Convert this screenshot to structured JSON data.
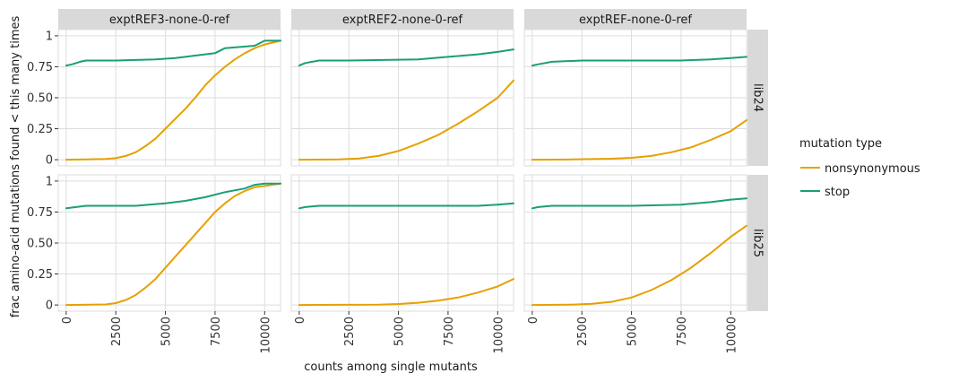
{
  "chart_data": {
    "type": "line",
    "xlabel": "counts among single mutants",
    "ylabel": "frac amino-acid mutations found < this many times",
    "xlim": [
      -400,
      10800
    ],
    "ylim": [
      -0.05,
      1.05
    ],
    "x_ticks": [
      0,
      2500,
      5000,
      7500,
      10000
    ],
    "x_tick_labels": [
      "0",
      "2500",
      "5000",
      "7500",
      "10000"
    ],
    "y_ticks": [
      0,
      0.25,
      0.5,
      0.75,
      1
    ],
    "y_tick_labels": [
      "0",
      "0.25",
      "0.50",
      "0.75",
      "1"
    ],
    "columns": [
      "exptREF3-none-0-ref",
      "exptREF2-none-0-ref",
      "exptREF-none-0-ref"
    ],
    "rows": [
      "lib24",
      "lib25"
    ],
    "grid": true,
    "legend": {
      "title": "mutation type",
      "position": "right",
      "entries": [
        {
          "label": "nonsynonymous",
          "color": "#E6A000"
        },
        {
          "label": "stop",
          "color": "#1B9E77"
        }
      ]
    },
    "colors": {
      "nonsynonymous": "#E6A000",
      "stop": "#1B9E77",
      "strip": "#D9D9D9",
      "grid": "#DDDDDD"
    },
    "panels": [
      {
        "col": 0,
        "row": 0,
        "series": [
          {
            "type": "nonsynonymous",
            "x": [
              0,
              1000,
              2000,
              2500,
              3000,
              3500,
              4000,
              4500,
              5000,
              5500,
              6000,
              6500,
              7000,
              7500,
              8000,
              8500,
              9000,
              9500,
              10000,
              10800
            ],
            "y": [
              0,
              0.002,
              0.006,
              0.012,
              0.03,
              0.06,
              0.11,
              0.17,
              0.25,
              0.33,
              0.41,
              0.5,
              0.6,
              0.68,
              0.75,
              0.81,
              0.86,
              0.9,
              0.93,
              0.96
            ]
          },
          {
            "type": "stop",
            "x": [
              0,
              300,
              700,
              1000,
              2500,
              4500,
              5500,
              6500,
              7500,
              8000,
              9500,
              10000,
              10800
            ],
            "y": [
              0.76,
              0.77,
              0.79,
              0.8,
              0.8,
              0.81,
              0.82,
              0.84,
              0.86,
              0.9,
              0.92,
              0.96,
              0.96
            ]
          }
        ]
      },
      {
        "col": 1,
        "row": 0,
        "series": [
          {
            "type": "nonsynonymous",
            "x": [
              0,
              2000,
              3000,
              4000,
              5000,
              6000,
              7000,
              8000,
              9000,
              10000,
              10800
            ],
            "y": [
              0,
              0.003,
              0.01,
              0.03,
              0.07,
              0.13,
              0.2,
              0.29,
              0.39,
              0.5,
              0.64
            ]
          },
          {
            "type": "stop",
            "x": [
              0,
              300,
              1000,
              2500,
              6000,
              7500,
              9000,
              10000,
              10800
            ],
            "y": [
              0.76,
              0.78,
              0.8,
              0.8,
              0.81,
              0.83,
              0.85,
              0.87,
              0.89
            ]
          }
        ]
      },
      {
        "col": 2,
        "row": 0,
        "series": [
          {
            "type": "nonsynonymous",
            "x": [
              0,
              2000,
              4000,
              5000,
              6000,
              7000,
              8000,
              9000,
              10000,
              10800
            ],
            "y": [
              0,
              0.002,
              0.008,
              0.015,
              0.03,
              0.06,
              0.1,
              0.16,
              0.23,
              0.32
            ]
          },
          {
            "type": "stop",
            "x": [
              0,
              300,
              1000,
              2500,
              7500,
              9000,
              10000,
              10800
            ],
            "y": [
              0.76,
              0.77,
              0.79,
              0.8,
              0.8,
              0.81,
              0.82,
              0.83
            ]
          }
        ]
      },
      {
        "col": 0,
        "row": 1,
        "series": [
          {
            "type": "nonsynonymous",
            "x": [
              0,
              2000,
              2500,
              3000,
              3500,
              4000,
              4500,
              5000,
              5500,
              6000,
              6500,
              7000,
              7500,
              8000,
              8500,
              9000,
              9500,
              10000,
              10800
            ],
            "y": [
              0,
              0.004,
              0.015,
              0.04,
              0.08,
              0.14,
              0.21,
              0.3,
              0.39,
              0.48,
              0.57,
              0.66,
              0.75,
              0.82,
              0.88,
              0.92,
              0.95,
              0.96,
              0.98
            ]
          },
          {
            "type": "stop",
            "x": [
              0,
              500,
              1000,
              3500,
              5000,
              6000,
              7000,
              8000,
              9000,
              9500,
              10000,
              10800
            ],
            "y": [
              0.78,
              0.79,
              0.8,
              0.8,
              0.82,
              0.84,
              0.87,
              0.91,
              0.94,
              0.97,
              0.98,
              0.98
            ]
          }
        ]
      },
      {
        "col": 1,
        "row": 1,
        "series": [
          {
            "type": "nonsynonymous",
            "x": [
              0,
              4000,
              5000,
              6000,
              7000,
              8000,
              9000,
              10000,
              10800
            ],
            "y": [
              0,
              0.003,
              0.008,
              0.018,
              0.035,
              0.06,
              0.1,
              0.15,
              0.21
            ]
          },
          {
            "type": "stop",
            "x": [
              0,
              300,
              1000,
              2500,
              9000,
              10000,
              10800
            ],
            "y": [
              0.78,
              0.79,
              0.8,
              0.8,
              0.8,
              0.81,
              0.82
            ]
          }
        ]
      },
      {
        "col": 2,
        "row": 1,
        "series": [
          {
            "type": "nonsynonymous",
            "x": [
              0,
              2000,
              3000,
              4000,
              5000,
              6000,
              7000,
              8000,
              9000,
              10000,
              10800
            ],
            "y": [
              0,
              0.003,
              0.01,
              0.025,
              0.06,
              0.12,
              0.2,
              0.3,
              0.42,
              0.55,
              0.64
            ]
          },
          {
            "type": "stop",
            "x": [
              0,
              300,
              1000,
              5000,
              7500,
              9000,
              10000,
              10800
            ],
            "y": [
              0.78,
              0.79,
              0.8,
              0.8,
              0.81,
              0.83,
              0.85,
              0.86
            ]
          }
        ]
      }
    ]
  }
}
